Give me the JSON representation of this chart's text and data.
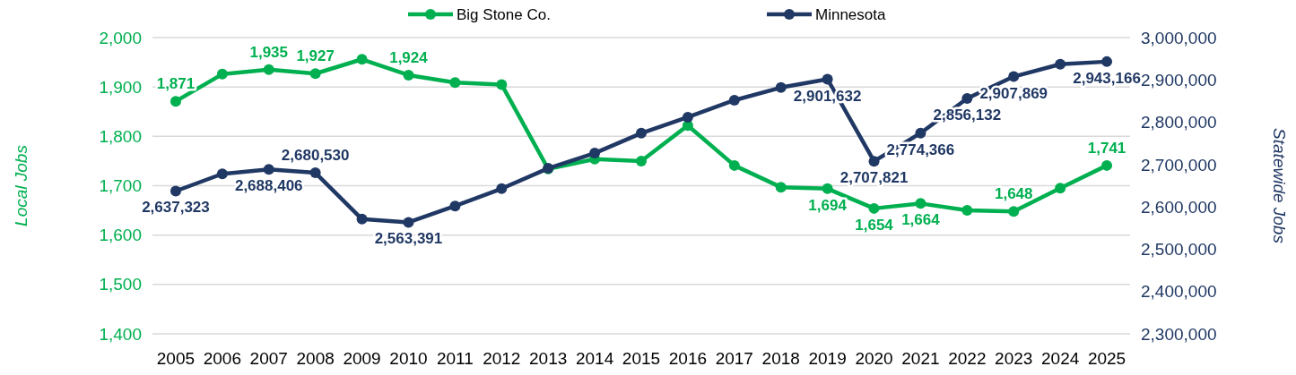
{
  "chart_data": {
    "type": "line",
    "ylabel": "Local Jobs",
    "y2label": "Statewide Jobs",
    "categories": [
      "2005",
      "2006",
      "2007",
      "2008",
      "2009",
      "2010",
      "2011",
      "2012",
      "2013",
      "2014",
      "2015",
      "2016",
      "2017",
      "2018",
      "2019",
      "2020",
      "2021",
      "2022",
      "2023",
      "2024",
      "2025"
    ],
    "series": [
      {
        "name": "Big Stone Co.",
        "color": "#00b050",
        "values": [
          1871,
          1926,
          1935,
          1927,
          1956,
          1924,
          1909,
          1905,
          1734,
          1754,
          1750,
          1822,
          1741,
          1697,
          1694,
          1654,
          1664,
          1650,
          1648,
          1695,
          1741
        ],
        "value_labels": [
          "1,871",
          null,
          "1,935",
          "1,927",
          null,
          "1,924",
          null,
          null,
          null,
          null,
          null,
          null,
          null,
          null,
          "1,694",
          "1,654",
          "1,664",
          null,
          "1,648",
          null,
          "1,741"
        ]
      },
      {
        "name": "Minnesota",
        "color": "#203864",
        "axis": "y2",
        "values": [
          2637323,
          2678000,
          2688406,
          2680530,
          2571000,
          2563391,
          2602000,
          2643000,
          2691000,
          2727000,
          2774000,
          2812000,
          2852000,
          2882000,
          2901632,
          2707821,
          2774366,
          2856132,
          2907869,
          2937000,
          2943166
        ],
        "value_labels": [
          "2,637,323",
          null,
          "2,688,406",
          "2,680,530",
          null,
          "2,563,391",
          null,
          null,
          null,
          null,
          null,
          null,
          null,
          null,
          "2,901,632",
          "2,707,821",
          "2,774,366",
          "2,856,132",
          "2,907,869",
          null,
          "2,943,166"
        ]
      }
    ],
    "ylim": [
      1400,
      2000
    ],
    "yticks": [
      {
        "value": 1400,
        "label": "1,400"
      },
      {
        "value": 1500,
        "label": "1,500"
      },
      {
        "value": 1600,
        "label": "1,600"
      },
      {
        "value": 1700,
        "label": "1,700"
      },
      {
        "value": 1800,
        "label": "1,800"
      },
      {
        "value": 1900,
        "label": "1,900"
      },
      {
        "value": 2000,
        "label": "2,000"
      }
    ],
    "y2lim": [
      2300000,
      3000000
    ],
    "y2ticks": [
      {
        "value": 2300000,
        "label": "2,300,000"
      },
      {
        "value": 2400000,
        "label": "2,400,000"
      },
      {
        "value": 2500000,
        "label": "2,500,000"
      },
      {
        "value": 2600000,
        "label": "2,600,000"
      },
      {
        "value": 2700000,
        "label": "2,700,000"
      },
      {
        "value": 2800000,
        "label": "2,800,000"
      },
      {
        "value": 2900000,
        "label": "2,900,000"
      },
      {
        "value": 3000000,
        "label": "3,000,000"
      }
    ],
    "grid": "y",
    "legend": "top",
    "marker": "circle",
    "line_style": "solid"
  }
}
